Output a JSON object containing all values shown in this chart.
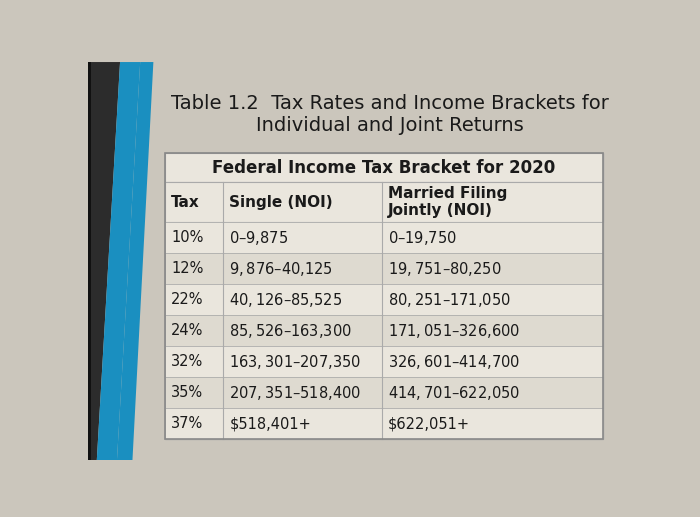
{
  "title_line1": "Table 1.2  Tax Rates and Income Brackets for",
  "title_line2": "Individual and Joint Returns",
  "subtitle": "Federal Income Tax Bracket for 2020",
  "col_headers": [
    "Tax",
    "Single (NOI)",
    "Married Filing\nJointly (NOI)"
  ],
  "rows": [
    [
      "10%",
      "$0 – $9,875",
      "$0 – $19,750"
    ],
    [
      "12%",
      "$9,876 – $40,125",
      "$19,751 – $80,250"
    ],
    [
      "22%",
      "$40,126 – $85,525",
      "$80,251 – $171,050"
    ],
    [
      "24%",
      "$85,526 – $163,300",
      "$171,051 – $326,600"
    ],
    [
      "32%",
      "$163,301 – $207,350",
      "$326,601 – $414,700"
    ],
    [
      "35%",
      "$207,351 – $518,400",
      "$414,701 – $622,050"
    ],
    [
      "37%",
      "$518,401+",
      "$622,051+"
    ]
  ],
  "bg_color": "#cbc6bc",
  "table_bg": "#eae6dd",
  "border_color": "#aaaaaa",
  "title_fontsize": 14,
  "subtitle_fontsize": 12,
  "header_fontsize": 11,
  "cell_fontsize": 10.5,
  "stripe_colors": [
    "#eae6dd",
    "#dedad0"
  ]
}
